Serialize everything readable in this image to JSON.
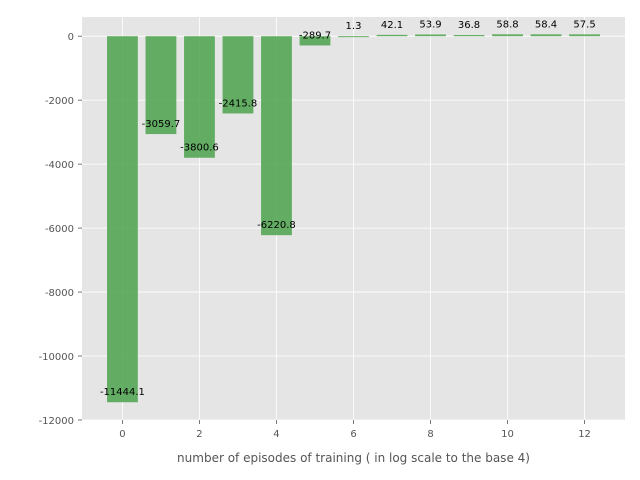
{
  "chart_data": {
    "type": "bar",
    "title": "",
    "xlabel": "number of episodes of training ( in log scale to the base 4)",
    "ylabel": "",
    "x": [
      0,
      1,
      2,
      3,
      4,
      5,
      6,
      7,
      8,
      9,
      10,
      11,
      12
    ],
    "values": [
      -11444.1,
      -3059.7,
      -3800.6,
      -2415.8,
      -6220.8,
      -289.7,
      1.3,
      42.1,
      53.9,
      36.8,
      58.8,
      58.4,
      57.5
    ],
    "data_labels": [
      "-11444.1",
      "-3059.7",
      "-3800.6",
      "-2415.8",
      "-6220.8",
      "-289.7",
      "1.3",
      "42.1",
      "53.9",
      "36.8",
      "58.8",
      "58.4",
      "57.5"
    ],
    "xlim": [
      -1.05,
      13.05
    ],
    "ylim": [
      -12000,
      600
    ],
    "xticks": [
      0,
      2,
      4,
      6,
      8,
      10,
      12
    ],
    "yticks": [
      -12000,
      -10000,
      -8000,
      -6000,
      -4000,
      -2000,
      0
    ],
    "grid": true,
    "bar_color": "#4ca24c",
    "background_color": "#e5e5e5",
    "grid_color": "#ffffff"
  }
}
